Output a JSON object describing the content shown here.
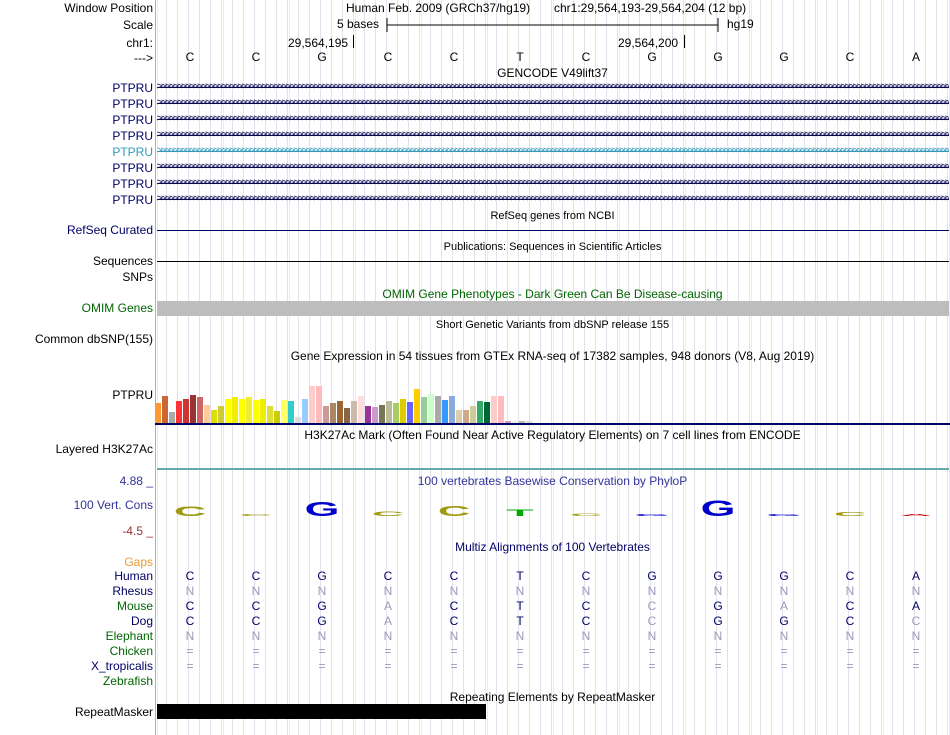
{
  "header": {
    "window_position_label": "Window Position",
    "scale_label": "Scale",
    "chrom_label": "chr1:",
    "strand_label": "--->",
    "assembly_text": "Human Feb. 2009 (GRCh37/hg19)",
    "position_text": "chr1:29,564,193-29,564,204 (12 bp)",
    "scale_text": "5 bases",
    "db_text": "hg19",
    "coord_1": "29,564,195",
    "coord_2": "29,564,200"
  },
  "bases": [
    "C",
    "C",
    "G",
    "C",
    "C",
    "T",
    "C",
    "G",
    "G",
    "G",
    "C",
    "A"
  ],
  "gencode": {
    "title": "GENCODE V49lift37",
    "genes": [
      "PTPRU",
      "PTPRU",
      "PTPRU",
      "PTPRU",
      "PTPRU",
      "PTPRU",
      "PTPRU",
      "PTPRU"
    ],
    "highlight_index": 4
  },
  "refseq": {
    "title": "RefSeq genes from NCBI",
    "label": "RefSeq Curated"
  },
  "pubs": {
    "title": "Publications: Sequences in Scientific Articles",
    "label": "Sequences"
  },
  "snps_label": "SNPs",
  "omim": {
    "title": "OMIM Gene Phenotypes - Dark Green Can Be Disease-causing",
    "label": "OMIM Genes"
  },
  "dbsnp": {
    "title": "Short Genetic Variants from dbSNP release 155",
    "label": "Common dbSNP(155)"
  },
  "gtex": {
    "title": "Gene Expression in 54 tissues from GTEx RNA-seq of 17382 samples, 948 donors (V8, Aug 2019)",
    "label": "PTPRU",
    "colors": [
      "#ff9933",
      "#cc6633",
      "#aaaaaa",
      "#ff3333",
      "#cc3333",
      "#993333",
      "#cc6666",
      "#ffcc99",
      "#dddd00",
      "#cccc33",
      "#ffff00",
      "#eeee00",
      "#ffff00",
      "#eeee33",
      "#ffff00",
      "#eeee00",
      "#dddd33",
      "#cccc00",
      "#ffff66",
      "#33cccc",
      "#dddddd",
      "#99ccff",
      "#ffcccc",
      "#ffbbbb",
      "#cc9999",
      "#aa8866",
      "#996633",
      "#886644",
      "#ccbbaa",
      "#ffdddd",
      "#993399",
      "#cc99cc",
      "#777755",
      "#bbbb99",
      "#aacc66",
      "#ddcc00",
      "#6666ff",
      "#ffcc00",
      "#99cc99",
      "#ccffcc",
      "#aaaaaa",
      "#3399ff",
      "#88aadd",
      "#ddccaa",
      "#ccaa88",
      "#cccc99",
      "#33aa66",
      "#006633",
      "#ffcccc",
      "#ffbbbb",
      "#cc99cc",
      "#eeeeee",
      "#bbbbbb",
      "#dddddd"
    ],
    "values": [
      32,
      45,
      18,
      36,
      40,
      46,
      42,
      30,
      22,
      28,
      40,
      42,
      40,
      43,
      38,
      40,
      28,
      20,
      37,
      36,
      10,
      40,
      60,
      60,
      28,
      33,
      36,
      25,
      36,
      45,
      28,
      26,
      30,
      36,
      32,
      40,
      35,
      55,
      42,
      48,
      45,
      37,
      45,
      22,
      22,
      28,
      36,
      34,
      45,
      45,
      3,
      3,
      3,
      3
    ]
  },
  "h3k27ac": {
    "title": "H3K27Ac Mark (Often Found Near Active Regulatory Elements) on 7 cell lines from ENCODE",
    "label": "Layered H3K27Ac"
  },
  "phylop": {
    "title": "100 vertebrates Basewise Conservation by PhyloP",
    "label": "100 Vert. Cons",
    "ymax": "4.88 _",
    "ymin": "-4.5 _",
    "scores": [
      1.8,
      0.2,
      2.6,
      -0.8,
      1.9,
      1.2,
      0.5,
      0.3,
      2.8,
      -0.4,
      0.7,
      -0.1
    ],
    "colors": {
      "A": "#cc0000",
      "C": "#a09a10",
      "G": "#0000cc",
      "T": "#00aa00"
    }
  },
  "multiz": {
    "title": "Multiz Alignments of 100 Vertebrates",
    "gaps_label": "Gaps",
    "species": [
      {
        "name": "Human",
        "color": "#000066",
        "bases": [
          "C",
          "C",
          "G",
          "C",
          "C",
          "T",
          "C",
          "G",
          "G",
          "G",
          "C",
          "A"
        ],
        "dim": []
      },
      {
        "name": "Rhesus",
        "color": "#000066",
        "bases": [
          "N",
          "N",
          "N",
          "N",
          "N",
          "N",
          "N",
          "N",
          "N",
          "N",
          "N",
          "N"
        ],
        "dim": [
          0,
          1,
          2,
          3,
          4,
          5,
          6,
          7,
          8,
          9,
          10,
          11
        ]
      },
      {
        "name": "Mouse",
        "color": "#006600",
        "bases": [
          "C",
          "C",
          "G",
          "A",
          "C",
          "T",
          "C",
          "C",
          "G",
          "A",
          "C",
          "A"
        ],
        "dim": [
          3,
          7,
          9
        ]
      },
      {
        "name": "Dog",
        "color": "#000066",
        "bases": [
          "C",
          "C",
          "G",
          "A",
          "C",
          "T",
          "C",
          "C",
          "G",
          "G",
          "C",
          "C"
        ],
        "dim": [
          3,
          7,
          11
        ]
      },
      {
        "name": "Elephant",
        "color": "#006600",
        "bases": [
          "N",
          "N",
          "N",
          "N",
          "N",
          "N",
          "N",
          "N",
          "N",
          "N",
          "N",
          "N"
        ],
        "dim": [
          0,
          1,
          2,
          3,
          4,
          5,
          6,
          7,
          8,
          9,
          10,
          11
        ]
      },
      {
        "name": "Chicken",
        "color": "#006600",
        "bases": [
          "=",
          "=",
          "=",
          "=",
          "=",
          "=",
          "=",
          "=",
          "=",
          "=",
          "=",
          "="
        ],
        "dim": [
          0,
          1,
          2,
          3,
          4,
          5,
          6,
          7,
          8,
          9,
          10,
          11
        ]
      },
      {
        "name": "X_tropicalis",
        "color": "#000066",
        "bases": [
          "=",
          "=",
          "=",
          "=",
          "=",
          "=",
          "=",
          "=",
          "=",
          "=",
          "=",
          "="
        ],
        "dim": [
          0,
          1,
          2,
          3,
          4,
          5,
          6,
          7,
          8,
          9,
          10,
          11
        ]
      },
      {
        "name": "Zebrafish",
        "color": "#006600",
        "bases": [],
        "dim": []
      }
    ]
  },
  "repeatmasker": {
    "title": "Repeating Elements by RepeatMasker",
    "label": "RepeatMasker"
  }
}
